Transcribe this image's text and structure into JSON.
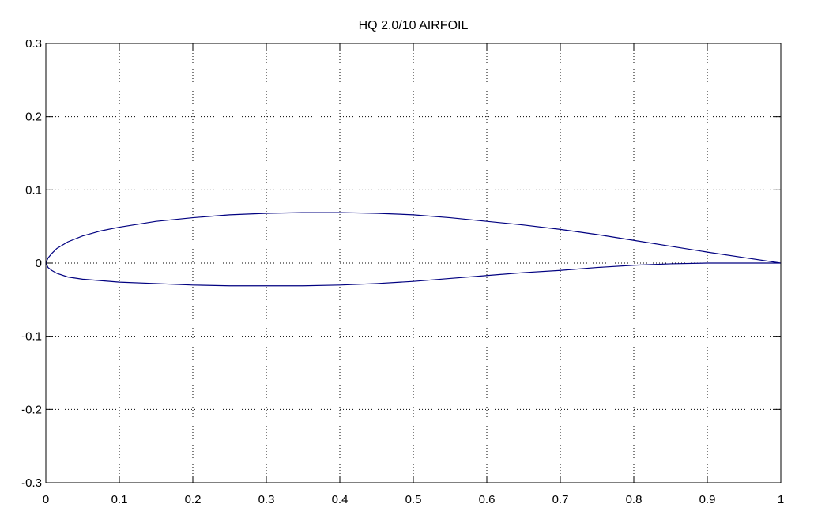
{
  "chart_data": {
    "type": "line",
    "title": "HQ 2.0/10 AIRFOIL",
    "xlabel": "",
    "ylabel": "",
    "xlim": [
      0,
      1
    ],
    "ylim": [
      -0.3,
      0.3
    ],
    "x_ticks": [
      0,
      0.1,
      0.2,
      0.3,
      0.4,
      0.5,
      0.6,
      0.7,
      0.8,
      0.9,
      1
    ],
    "x_tick_labels": [
      "0",
      "0.1",
      "0.2",
      "0.3",
      "0.4",
      "0.5",
      "0.6",
      "0.7",
      "0.8",
      "0.9",
      "1"
    ],
    "y_ticks": [
      -0.3,
      -0.2,
      -0.1,
      0,
      0.1,
      0.2,
      0.3
    ],
    "y_tick_labels": [
      "-0.3",
      "-0.2",
      "-0.1",
      "0",
      "0.1",
      "0.2",
      "0.3"
    ],
    "grid": true,
    "line_color": "#000080",
    "series": [
      {
        "x": [
          1.0,
          0.95,
          0.9,
          0.85,
          0.8,
          0.75,
          0.7,
          0.65,
          0.6,
          0.55,
          0.5,
          0.45,
          0.4,
          0.35,
          0.3,
          0.25,
          0.2,
          0.15,
          0.1,
          0.075,
          0.05,
          0.03,
          0.015,
          0.008,
          0.003,
          0.0,
          0.003,
          0.008,
          0.015,
          0.03,
          0.05,
          0.075,
          0.1,
          0.15,
          0.2,
          0.25,
          0.3,
          0.35,
          0.4,
          0.45,
          0.5,
          0.55,
          0.6,
          0.65,
          0.7,
          0.75,
          0.8,
          0.85,
          0.9,
          0.95,
          1.0
        ],
        "y": [
          0.0,
          0.0075,
          0.015,
          0.023,
          0.031,
          0.039,
          0.046,
          0.052,
          0.057,
          0.062,
          0.066,
          0.068,
          0.069,
          0.069,
          0.068,
          0.066,
          0.062,
          0.057,
          0.049,
          0.044,
          0.037,
          0.029,
          0.02,
          0.013,
          0.007,
          0.0,
          -0.006,
          -0.01,
          -0.014,
          -0.019,
          -0.022,
          -0.024,
          -0.026,
          -0.028,
          -0.03,
          -0.031,
          -0.031,
          -0.031,
          -0.03,
          -0.028,
          -0.025,
          -0.021,
          -0.017,
          -0.013,
          -0.01,
          -0.006,
          -0.003,
          -0.001,
          0.0,
          0.0,
          0.0
        ]
      }
    ]
  }
}
